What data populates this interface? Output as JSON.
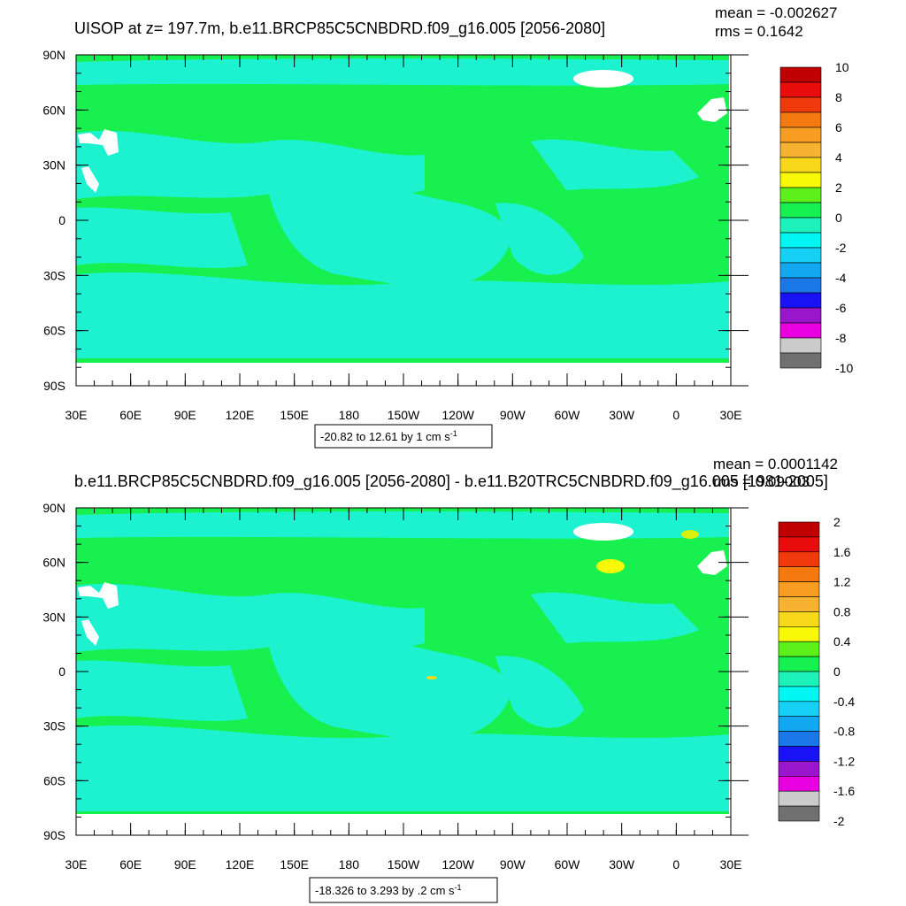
{
  "panels": [
    {
      "title": "UISOP at z= 197.7m, b.e11.BRCP85C5CNBDRD.f09_g16.005 [2056-2080]",
      "mean": "mean = -0.002627",
      "rms": "rms = 0.1642",
      "range_text": "-20.82 to 12.61 by 1 cm s",
      "range_sup": "-1",
      "colorbar_labels": [
        "10",
        "8",
        "6",
        "4",
        "2",
        "0",
        "-2",
        "-4",
        "-6",
        "-8",
        "-10"
      ]
    },
    {
      "title": "b.e11.BRCP85C5CNBDRD.f09_g16.005 [2056-2080] - b.e11.B20TRC5CNBDRD.f09_g16.005 [1981-2005]",
      "mean": "mean = 0.0001142",
      "rms": "rms = 0.09003",
      "range_text": "-18.326 to 3.293 by .2 cm s",
      "range_sup": "-1",
      "colorbar_labels": [
        "2",
        "1.6",
        "1.2",
        "0.8",
        "0.4",
        "0",
        "-0.4",
        "-0.8",
        "-1.2",
        "-1.6",
        "-2"
      ]
    }
  ],
  "map": {
    "lat_labels": [
      "90N",
      "60N",
      "30N",
      "0",
      "30S",
      "60S",
      "90S"
    ],
    "lon_labels": [
      "30E",
      "60E",
      "90E",
      "120E",
      "150E",
      "180",
      "150W",
      "120W",
      "90W",
      "60W",
      "30W",
      "0",
      "30E"
    ]
  },
  "colors": {
    "palette": [
      "#707070",
      "#cbcbcb",
      "#e800e0",
      "#9a16cc",
      "#1812f4",
      "#1a78e8",
      "#12a8f2",
      "#16d0f6",
      "#00f6f2",
      "#1cf2ba",
      "#16f050",
      "#5ef01a",
      "#f8f808",
      "#f8d81a",
      "#f8b232",
      "#f89c22",
      "#f47a10",
      "#f03a0c",
      "#e80c0c",
      "#c00000"
    ],
    "field_green": "#18f050",
    "field_cyan": "#1cf2d0",
    "land_white": "#ffffff"
  }
}
